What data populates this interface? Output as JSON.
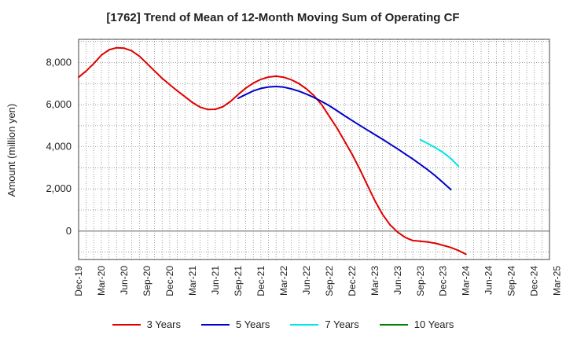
{
  "chart_data": {
    "type": "line",
    "title": "[1762]  Trend of Mean of 12-Month Moving Sum of Operating CF",
    "xlabel": "",
    "ylabel": "Amount (million yen)",
    "ylim": [
      -1350,
      9100
    ],
    "yticks": [
      0,
      2000,
      4000,
      6000,
      8000
    ],
    "ytick_labels": [
      "0",
      "2,000",
      "4,000",
      "6,000",
      "8,000"
    ],
    "x_index_range": [
      0,
      62
    ],
    "xtick_labels": [
      "Dec-19",
      "Mar-20",
      "Jun-20",
      "Sep-20",
      "Dec-20",
      "Mar-21",
      "Jun-21",
      "Sep-21",
      "Dec-21",
      "Mar-22",
      "Jun-22",
      "Sep-22",
      "Dec-22",
      "Mar-23",
      "Jun-23",
      "Sep-23",
      "Dec-23",
      "Mar-24",
      "Jun-24",
      "Sep-24",
      "Dec-24",
      "Mar-25"
    ],
    "grid": true,
    "legend_position": "bottom",
    "series": [
      {
        "name": "3 Years",
        "color": "#e00000",
        "start_index": 0,
        "values": [
          7300,
          7600,
          7950,
          8350,
          8600,
          8700,
          8680,
          8550,
          8300,
          7950,
          7600,
          7250,
          6950,
          6650,
          6380,
          6100,
          5880,
          5770,
          5780,
          5900,
          6150,
          6480,
          6780,
          7020,
          7200,
          7310,
          7350,
          7300,
          7180,
          7000,
          6750,
          6420,
          6000,
          5450,
          4900,
          4280,
          3650,
          2950,
          2200,
          1450,
          800,
          300,
          -50,
          -300,
          -450,
          -480,
          -520,
          -580,
          -680,
          -780,
          -920,
          -1100
        ]
      },
      {
        "name": "5 Years",
        "color": "#0000cc",
        "start_index": 21,
        "values": [
          6300,
          6480,
          6650,
          6770,
          6840,
          6860,
          6830,
          6750,
          6640,
          6500,
          6340,
          6150,
          5950,
          5720,
          5480,
          5250,
          5020,
          4800,
          4580,
          4360,
          4130,
          3900,
          3660,
          3420,
          3160,
          2900,
          2610,
          2300,
          1970
        ]
      },
      {
        "name": "7 Years",
        "color": "#00e5e5",
        "start_index": 45,
        "values": [
          4330,
          4150,
          3950,
          3730,
          3450,
          3080
        ]
      },
      {
        "name": "10 Years",
        "color": "#008000",
        "start_index": 45,
        "values": []
      }
    ]
  }
}
